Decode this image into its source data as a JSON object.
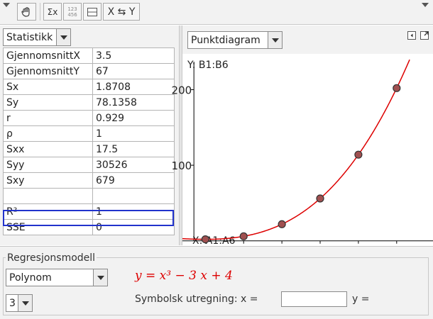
{
  "toolbar": {
    "buttons": [
      {
        "name": "data-source-icon",
        "label": ""
      },
      {
        "name": "sigma-x-icon",
        "label": "Σx"
      },
      {
        "name": "number-grid-icon",
        "label": "123\n456"
      },
      {
        "name": "split-panel-icon",
        "label": ""
      },
      {
        "name": "swap-xy-button",
        "label": "X ⇆ Y"
      }
    ]
  },
  "stats": {
    "selector": "Statistikk",
    "rows": [
      {
        "key": "GjennomsnittX",
        "value": "3.5"
      },
      {
        "key": "GjennomsnittY",
        "value": "67"
      },
      {
        "key": "Sx",
        "value": "1.8708"
      },
      {
        "key": "Sy",
        "value": "78.1358"
      },
      {
        "key": "r",
        "value": "0.929"
      },
      {
        "key": "ρ",
        "value": "1"
      },
      {
        "key": "Sxx",
        "value": "17.5"
      },
      {
        "key": "Syy",
        "value": "30526"
      },
      {
        "key": "Sxy",
        "value": "679"
      },
      {
        "key": "",
        "value": ""
      },
      {
        "key": "R²",
        "value": "1"
      },
      {
        "key": "SSE",
        "value": "0"
      }
    ],
    "selected_row": "R²"
  },
  "plot": {
    "selector": "Punktdiagram",
    "y_source": "Y:  B1:B6",
    "x_source": "X:  A1:A6"
  },
  "regression": {
    "title": "Regresjonsmodell",
    "model": "Polynom",
    "degree": "3",
    "formula_display": "y = x³ − 3 x + 4",
    "symbolic_label": "Symbolsk utregning:  x =",
    "x_input_value": "",
    "y_label": "y ="
  },
  "chart_data": {
    "type": "scatter",
    "x": [
      1,
      2,
      3,
      4,
      5,
      6
    ],
    "y": [
      2,
      6,
      22,
      56,
      114,
      202
    ],
    "xlim": [
      0.4,
      6.95
    ],
    "ylim": [
      -4,
      237
    ],
    "x_ticks": [
      "1",
      "2",
      "3",
      "4",
      "5",
      "6"
    ],
    "y_ticks": [
      "100",
      "200"
    ],
    "fit_curve": {
      "coefficients": [
        4,
        -3,
        0,
        1
      ],
      "color": "#dd0000"
    },
    "point_color": "#a05050",
    "grid": false
  },
  "colors": {
    "selection": "#2233cc",
    "curve": "#dd0000",
    "panel_bg": "#f2f2f2"
  }
}
